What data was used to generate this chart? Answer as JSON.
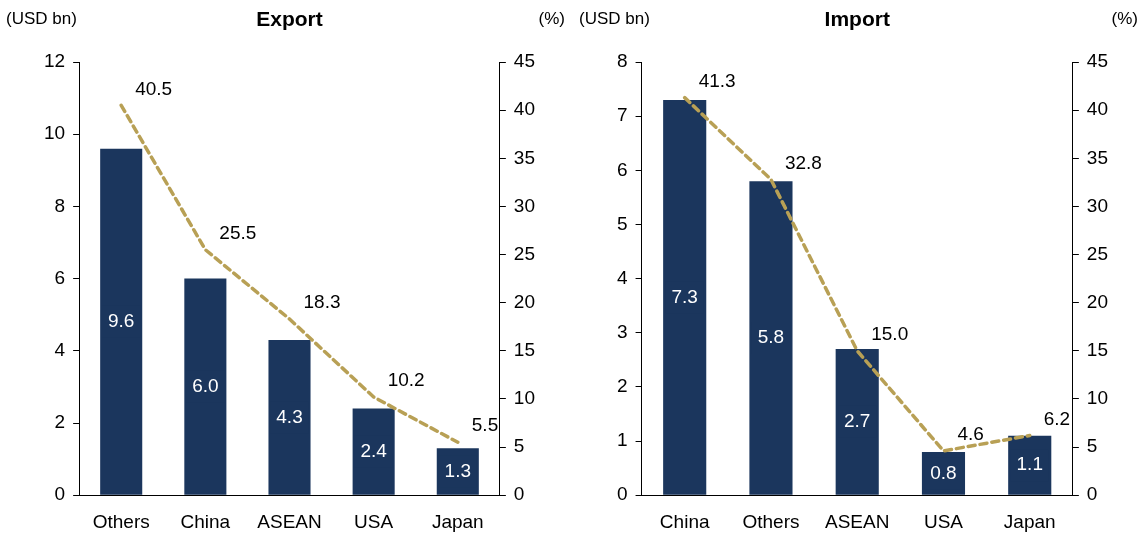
{
  "chart_data": [
    {
      "type": "bar",
      "title": "Export",
      "ylabel": "(USD bn)",
      "y2label": "(%)",
      "categories": [
        "Others",
        "China",
        "ASEAN",
        "USA",
        "Japan"
      ],
      "ylim": [
        0,
        12
      ],
      "yticks": [
        0,
        2,
        4,
        6,
        8,
        10,
        12
      ],
      "y2lim": [
        0,
        45
      ],
      "y2ticks": [
        0,
        5,
        10,
        15,
        20,
        25,
        30,
        35,
        40,
        45
      ],
      "grid": false,
      "legend": false,
      "marker": "none",
      "series": [
        {
          "color": "#1b365d",
          "values": [
            9.6,
            6.0,
            4.3,
            2.4,
            1.3
          ],
          "value_labels": [
            "9.6",
            "6.0",
            "4.3",
            "2.4",
            "1.3"
          ]
        },
        {
          "type": "line",
          "axis": "y2",
          "line_style": "dashed",
          "color": "#b8a055",
          "values": [
            40.5,
            25.5,
            18.3,
            10.2,
            5.5
          ],
          "value_labels": [
            "40.5",
            "25.5",
            "18.3",
            "10.2",
            "5.5"
          ]
        }
      ]
    },
    {
      "type": "bar",
      "title": "Import",
      "ylabel": "(USD bn)",
      "y2label": "(%)",
      "categories": [
        "China",
        "Others",
        "ASEAN",
        "USA",
        "Japan"
      ],
      "ylim": [
        0,
        8
      ],
      "yticks": [
        0,
        1,
        2,
        3,
        4,
        5,
        6,
        7,
        8
      ],
      "y2lim": [
        0,
        45
      ],
      "y2ticks": [
        0,
        5,
        10,
        15,
        20,
        25,
        30,
        35,
        40,
        45
      ],
      "grid": false,
      "legend": false,
      "marker": "none",
      "series": [
        {
          "color": "#1b365d",
          "values": [
            7.3,
            5.8,
            2.7,
            0.8,
            1.1
          ],
          "value_labels": [
            "7.3",
            "5.8",
            "2.7",
            "0.8",
            "1.1"
          ]
        },
        {
          "type": "line",
          "axis": "y2",
          "line_style": "dashed",
          "color": "#b8a055",
          "values": [
            41.3,
            32.8,
            15.0,
            4.6,
            6.2
          ],
          "value_labels": [
            "41.3",
            "32.8",
            "15.0",
            "4.6",
            "6.2"
          ]
        }
      ]
    }
  ]
}
